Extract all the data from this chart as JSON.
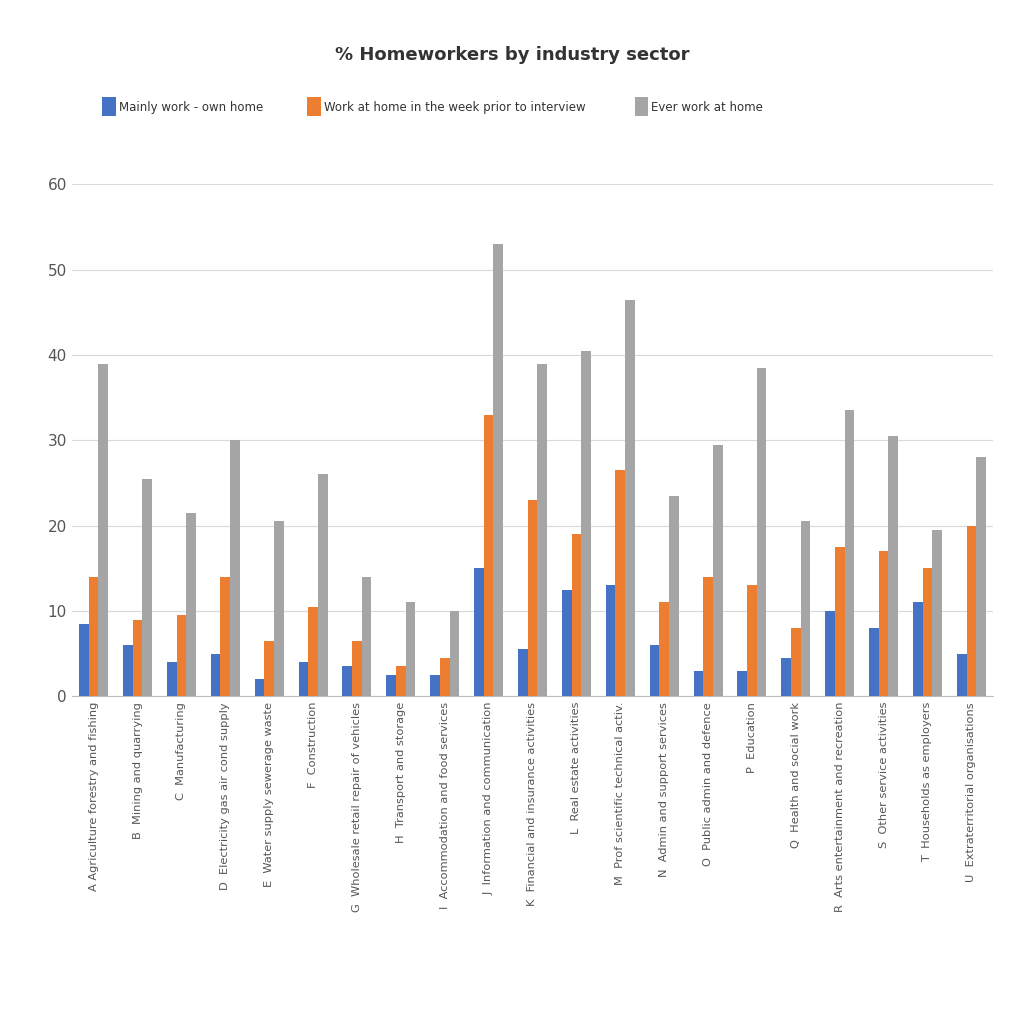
{
  "title": "% Homeworkers by industry sector",
  "categories": [
    "A Agriculture forestry and fishing",
    "B  Mining and quarrying",
    "C  Manufacturing",
    "D  Electricity gas air cond supply",
    "E  Water supply sewerage waste",
    "F  Construction",
    "G  Wholesale retail repair of vehicles",
    "H  Transport and storage",
    "I  Accommodation and food services",
    "J  Information and communication",
    "K  Financial and insurance activities",
    "L  Real estate activities",
    "M  Prof scientific technical activ.",
    "N  Admin and support services",
    "O  Public admin and defence",
    "P  Education",
    "Q  Health and social work",
    "R  Arts entertainment and recreation",
    "S  Other service activities",
    "T  Households as employers",
    "U  Extraterritorial organisations"
  ],
  "series": {
    "Mainly work - own home": [
      8.5,
      6.0,
      4.0,
      5.0,
      2.0,
      4.0,
      3.5,
      2.5,
      2.5,
      15.0,
      5.5,
      12.5,
      13.0,
      6.0,
      3.0,
      3.0,
      4.5,
      10.0,
      8.0,
      11.0,
      5.0
    ],
    "Work at home in the week prior to interview": [
      14.0,
      9.0,
      9.5,
      14.0,
      6.5,
      10.5,
      6.5,
      3.5,
      4.5,
      33.0,
      23.0,
      19.0,
      26.5,
      11.0,
      14.0,
      13.0,
      8.0,
      17.5,
      17.0,
      15.0,
      20.0
    ],
    "Ever work at home": [
      39.0,
      25.5,
      21.5,
      30.0,
      20.5,
      26.0,
      14.0,
      11.0,
      10.0,
      53.0,
      39.0,
      40.5,
      46.5,
      23.5,
      29.5,
      38.5,
      20.5,
      33.5,
      30.5,
      19.5,
      28.0
    ]
  },
  "colors": {
    "Mainly work - own home": "#4472C4",
    "Work at home in the week prior to interview": "#ED7D31",
    "Ever work at home": "#A5A5A5"
  },
  "ylim": [
    0,
    60
  ],
  "yticks": [
    0,
    10,
    20,
    30,
    40,
    50,
    60
  ],
  "background_color": "#FFFFFF",
  "grid_color": "#D9D9D9",
  "bar_width": 0.22
}
